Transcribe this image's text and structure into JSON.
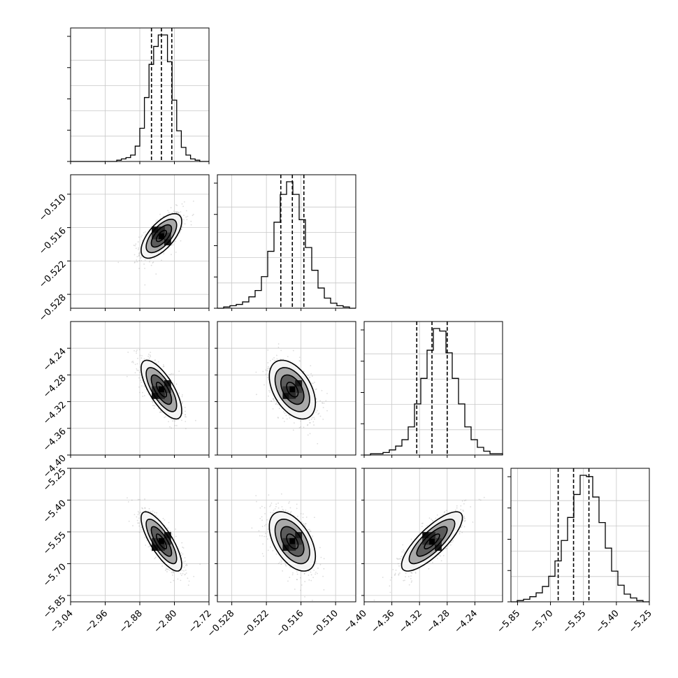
{
  "chart_data": {
    "type": "corner",
    "parameters": [
      {
        "index": 0,
        "mean": -2.83,
        "q16": -2.853,
        "q84": -2.806,
        "range": [
          -3.04,
          -2.72
        ],
        "ticks": [
          -3.04,
          -2.96,
          -2.88,
          -2.8,
          -2.72
        ],
        "tick_labels": [
          "−3.04",
          "−2.96",
          "−2.88",
          "−2.80",
          "−2.72"
        ]
      },
      {
        "index": 1,
        "mean": -0.5175,
        "q16": -0.5195,
        "q84": -0.5155,
        "range": [
          -0.5305,
          -0.5065
        ],
        "ticks": [
          -0.528,
          -0.522,
          -0.516,
          -0.51
        ],
        "tick_labels": [
          "−0.528",
          "−0.522",
          "−0.516",
          "−0.510"
        ]
      },
      {
        "index": 2,
        "mean": -4.302,
        "q16": -4.324,
        "q84": -4.28,
        "range": [
          -4.4,
          -4.2
        ],
        "ticks": [
          -4.4,
          -4.36,
          -4.32,
          -4.28,
          -4.24
        ],
        "tick_labels": [
          "−4.40",
          "−4.36",
          "−4.32",
          "−4.28",
          "−4.24"
        ]
      },
      {
        "index": 3,
        "mean": -5.595,
        "q16": -5.665,
        "q84": -5.525,
        "range": [
          -5.88,
          -5.25
        ],
        "ticks": [
          -5.85,
          -5.7,
          -5.55,
          -5.4,
          -5.25
        ],
        "tick_labels": [
          "−5.85",
          "−5.70",
          "−5.55",
          "−5.40",
          "−5.25"
        ]
      }
    ],
    "histograms": [
      {
        "param": 0,
        "bin_edges": [
          -3.04,
          -2.72
        ],
        "counts": [
          0,
          0,
          0,
          0,
          0,
          0,
          0,
          0,
          0,
          0,
          1,
          2,
          3,
          5,
          12,
          26,
          50,
          76,
          90,
          99,
          99,
          78,
          48,
          24,
          11,
          5,
          2,
          1,
          0,
          0
        ]
      },
      {
        "param": 1,
        "counts": [
          0,
          1,
          2,
          3,
          5,
          9,
          14,
          25,
          45,
          68,
          90,
          100,
          90,
          70,
          48,
          30,
          16,
          8,
          4,
          2,
          1,
          0
        ]
      },
      {
        "param": 2,
        "counts": [
          0,
          1,
          1,
          2,
          4,
          7,
          12,
          22,
          40,
          60,
          82,
          99,
          97,
          80,
          60,
          40,
          22,
          12,
          6,
          3,
          1,
          1
        ]
      },
      {
        "param": 3,
        "counts": [
          0,
          1,
          2,
          4,
          7,
          12,
          20,
          32,
          48,
          66,
          84,
          99,
          98,
          82,
          62,
          42,
          24,
          13,
          6,
          3,
          1,
          0
        ]
      }
    ],
    "correlations": [
      {
        "x": 0,
        "y": 1,
        "rho": 0.65
      },
      {
        "x": 0,
        "y": 2,
        "rho": -0.72
      },
      {
        "x": 1,
        "y": 2,
        "rho": -0.45
      },
      {
        "x": 0,
        "y": 3,
        "rho": -0.78
      },
      {
        "x": 1,
        "y": 3,
        "rho": -0.5
      },
      {
        "x": 2,
        "y": 3,
        "rho": 0.8
      }
    ],
    "contour_levels_sigma": [
      0.5,
      1.0,
      1.5,
      2.0
    ],
    "grid": true,
    "colors": {
      "points": "#9a9a9a",
      "density_dark": "#000000",
      "density_light": "#f4f4f4",
      "lines": "#000000"
    }
  }
}
